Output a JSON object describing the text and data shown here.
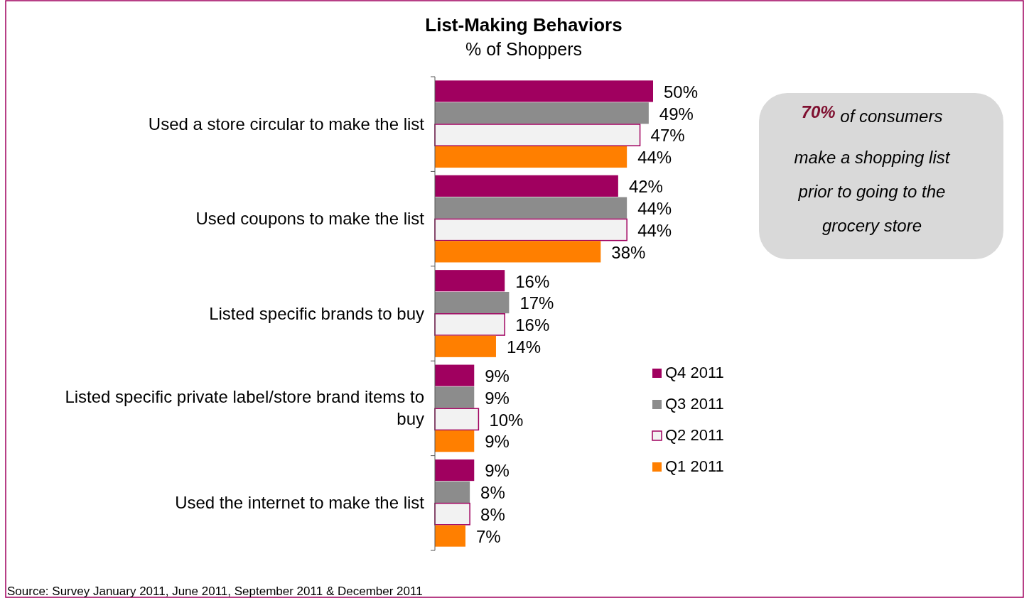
{
  "chart_data": {
    "type": "bar",
    "orientation": "horizontal",
    "title": "List-Making Behaviors",
    "subtitle": "% of Shoppers",
    "categories": [
      "Used a store circular to make the list",
      "Used coupons to make the list",
      "Listed specific brands to buy",
      "Listed specific private label/store brand items to buy",
      "Used the internet to make the list"
    ],
    "tick_labels": "y",
    "legend": "right",
    "grid": false,
    "series": [
      {
        "name": "Q4 2011",
        "color": "#a0005f",
        "values": [
          50,
          42,
          16,
          9,
          9
        ],
        "value_labels": [
          "50%",
          "42%",
          "16%",
          "9%",
          "9%"
        ]
      },
      {
        "name": "Q3 2011",
        "color": "#8c8c8c",
        "values": [
          49,
          44,
          17,
          9,
          8
        ],
        "value_labels": [
          "49%",
          "44%",
          "17%",
          "9%",
          "8%"
        ]
      },
      {
        "name": "Q2 2011",
        "color": "#f2f2f2",
        "values": [
          47,
          44,
          16,
          10,
          8
        ],
        "value_labels": [
          "47%",
          "44%",
          "16%",
          "10%",
          "8%"
        ]
      },
      {
        "name": "Q1 2011",
        "color": "#ff7f00",
        "values": [
          44,
          38,
          14,
          9,
          7
        ],
        "value_labels": [
          "44%",
          "38%",
          "14%",
          "9%",
          "7%"
        ]
      }
    ],
    "annotations": [
      "70% of consumers make a shopping list prior to going to the grocery store",
      "Source: Survey January 2011, June 2011, September 2011 & December 2011"
    ]
  }
}
